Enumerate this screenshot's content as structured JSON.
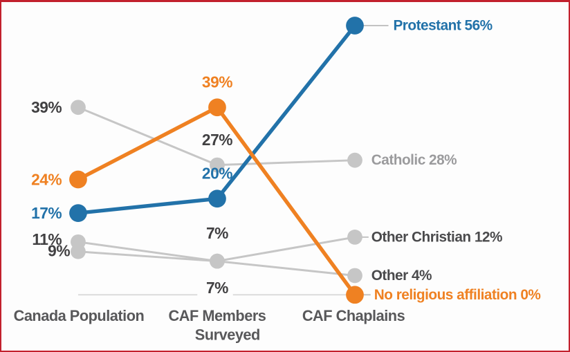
{
  "frame": {
    "background": "#FDFDFD",
    "border_color": "#C2202D"
  },
  "colors": {
    "blue": "#2272A9",
    "orange": "#EF8122",
    "gray_series": "#C6C6C6",
    "value_label_dark": "#414042",
    "end_label_dark": "#4A4A4C",
    "catholic_end_label": "#9B9B9D",
    "category_label": "#58585A",
    "axis_line": "#DBDBDB",
    "leader_line": "#C3C3C3"
  },
  "chart_data": {
    "type": "line",
    "subtype": "slopegraph",
    "title": "",
    "xlabel": "",
    "ylabel": "",
    "ylim": [
      0,
      60
    ],
    "grid": false,
    "legend": "none (direct labels at line ends)",
    "categories": [
      "Canada Population",
      "CAF Members Surveyed",
      "CAF Chaplains"
    ],
    "category_label_lines": [
      [
        "Canada Population"
      ],
      [
        "CAF Members",
        "Surveyed"
      ],
      [
        "CAF Chaplains"
      ]
    ],
    "series": [
      {
        "name": "Protestant",
        "color_key": "blue",
        "emphasis": true,
        "values": [
          17,
          20,
          56
        ],
        "value_labels": [
          "17%",
          "20%"
        ],
        "end_label": "Protestant 56%"
      },
      {
        "name": "No religious affiliation",
        "color_key": "orange",
        "emphasis": true,
        "values": [
          24,
          39,
          0
        ],
        "value_labels": [
          "24%",
          "39%"
        ],
        "end_label": "No religious affiliation 0%"
      },
      {
        "name": "Catholic",
        "color_key": "gray_series",
        "emphasis": false,
        "values": [
          39,
          27,
          28
        ],
        "value_labels": [
          "39%",
          "27%"
        ],
        "end_label": "Catholic 28%"
      },
      {
        "name": "Other Christian",
        "color_key": "gray_series",
        "emphasis": false,
        "values": [
          11,
          7,
          12
        ],
        "value_labels": [
          "11%",
          "7%"
        ],
        "end_label": "Other Christian 12%"
      },
      {
        "name": "Other",
        "color_key": "gray_series",
        "emphasis": false,
        "values": [
          9,
          7,
          4
        ],
        "value_labels": [
          "9%",
          "7%"
        ],
        "end_label": "Other 4%"
      }
    ]
  }
}
